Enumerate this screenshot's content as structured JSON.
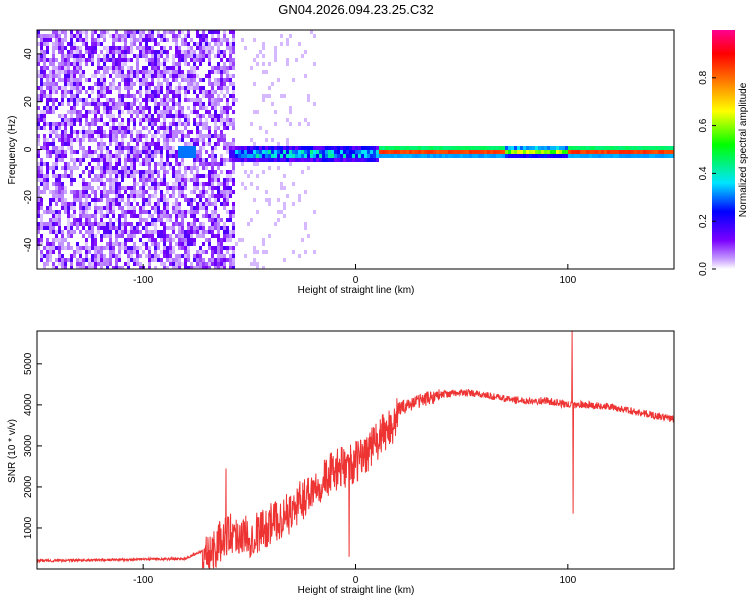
{
  "title": "GN04.2026.094.23.25.C32",
  "chart_data": [
    {
      "type": "heatmap",
      "xlabel": "Height of straight line (km)",
      "ylabel": "Frequency (Hz)",
      "xlim": [
        -150,
        150
      ],
      "ylim": [
        -50,
        50
      ],
      "x_ticks": [
        -100,
        0,
        100
      ],
      "y_ticks": [
        -40,
        -20,
        0,
        20,
        40
      ],
      "colorbar": {
        "label": "Normalized spectral amplitude",
        "range": [
          0.0,
          1.0
        ],
        "ticks": [
          "0.0",
          "0.2",
          "0.4",
          "0.6",
          "0.8"
        ],
        "colors": [
          "#ffffff",
          "#c8a0ff",
          "#7a00ff",
          "#0000ff",
          "#00e5ff",
          "#00ff00",
          "#ffff00",
          "#ff8000",
          "#ff0000",
          "#ff0090"
        ]
      },
      "regions": [
        {
          "x_range": [
            -150,
            -58
          ],
          "description_level": 0.15
        },
        {
          "x_range": [
            -58,
            10
          ],
          "band_center_hz": 0,
          "peak_level": 0.45
        },
        {
          "x_range": [
            10,
            150
          ],
          "band_center_hz": 0,
          "peak_level": 0.9
        }
      ]
    },
    {
      "type": "line",
      "xlabel": "Height of straight line (km)",
      "ylabel": "SNR (10 * v/v)",
      "xlim": [
        -150,
        150
      ],
      "ylim": [
        0,
        5800
      ],
      "x_ticks": [
        -100,
        0,
        100
      ],
      "y_ticks": [
        1000,
        2000,
        3000,
        4000,
        5000
      ],
      "series_color": "#ee3333",
      "trend": {
        "x": [
          -150,
          -80,
          -70,
          -60,
          -50,
          -40,
          -30,
          -20,
          -10,
          0,
          10,
          20,
          30,
          40,
          50,
          60,
          70,
          80,
          90,
          100,
          110,
          120,
          130,
          140,
          150
        ],
        "y": [
          200,
          250,
          500,
          1100,
          1000,
          1300,
          1600,
          2200,
          2600,
          2800,
          3300,
          3900,
          4100,
          4250,
          4300,
          4250,
          4150,
          4100,
          4100,
          4000,
          4000,
          3950,
          3850,
          3750,
          3650
        ]
      },
      "spikes": [
        {
          "x": -61,
          "y": 2450
        },
        {
          "x": -3,
          "y": 300
        },
        {
          "x": 102,
          "y": 5800
        },
        {
          "x": 102.5,
          "y": 1350
        }
      ]
    }
  ]
}
